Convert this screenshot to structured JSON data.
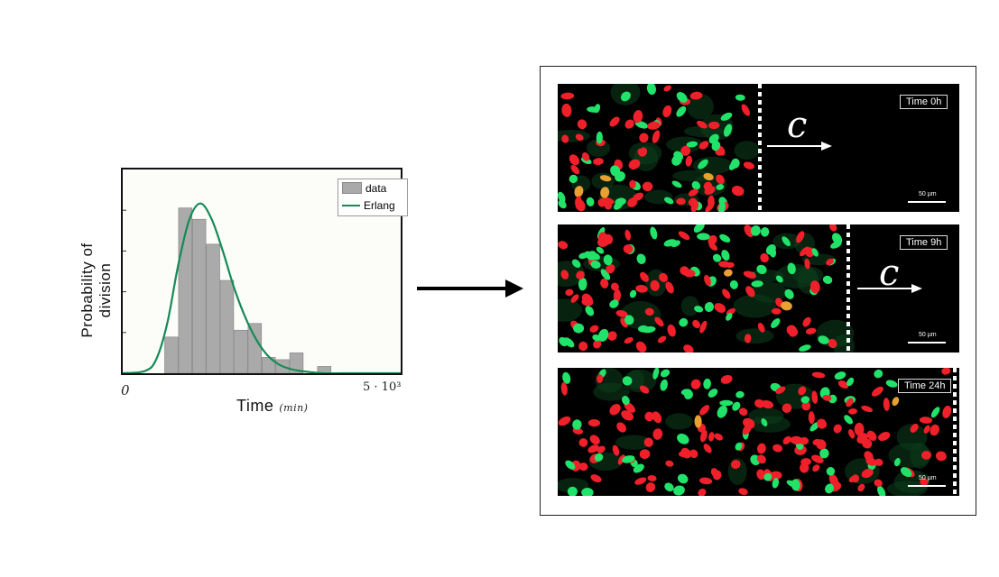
{
  "chart_data": {
    "type": "bar",
    "ylabel_line1": "Probability of",
    "ylabel_line2": "division",
    "xlabel": "Time",
    "xunit": "(min)",
    "xtick_start": "0",
    "xtick_end": "5 · 10³",
    "xlim": [
      0,
      5000
    ],
    "ylim": [
      0,
      0.0009
    ],
    "bin_centers": [
      875,
      1125,
      1375,
      1625,
      1875,
      2125,
      2375,
      2625,
      2875,
      3125,
      3625
    ],
    "values": [
      0.00016,
      0.00073,
      0.00068,
      0.00057,
      0.00041,
      0.00019,
      0.00022,
      7e-05,
      6e-05,
      9e-05,
      3e-05
    ],
    "bin_width": 240,
    "erlang_curve": {
      "x": [
        0,
        400,
        600,
        800,
        1000,
        1200,
        1400,
        1600,
        1800,
        2000,
        2200,
        2400,
        2600,
        2800,
        3000,
        3200,
        3600,
        4000,
        5000
      ],
      "y": [
        0,
        1e-05,
        6e-05,
        0.00022,
        0.00048,
        0.00068,
        0.00075,
        0.00068,
        0.00054,
        0.00038,
        0.00025,
        0.00015,
        8e-05,
        4e-05,
        2e-05,
        1e-05,
        0,
        0,
        0
      ]
    },
    "series": [
      {
        "name": "data",
        "color": "#aaaaaa"
      },
      {
        "name": "Erlang",
        "color": "#168a56"
      }
    ],
    "legend_position": "top-right"
  },
  "panels": [
    {
      "time": "Time 0h",
      "scale": "50 µm",
      "arrow_label": "c"
    },
    {
      "time": "Time 9h",
      "scale": "50 µm",
      "arrow_label": "c"
    },
    {
      "time": "Time 24h",
      "scale": "50 µm"
    }
  ],
  "colors": {
    "green_cells": "#22e36a",
    "red_cells": "#f0202a",
    "orange_cells": "#e8a030"
  }
}
